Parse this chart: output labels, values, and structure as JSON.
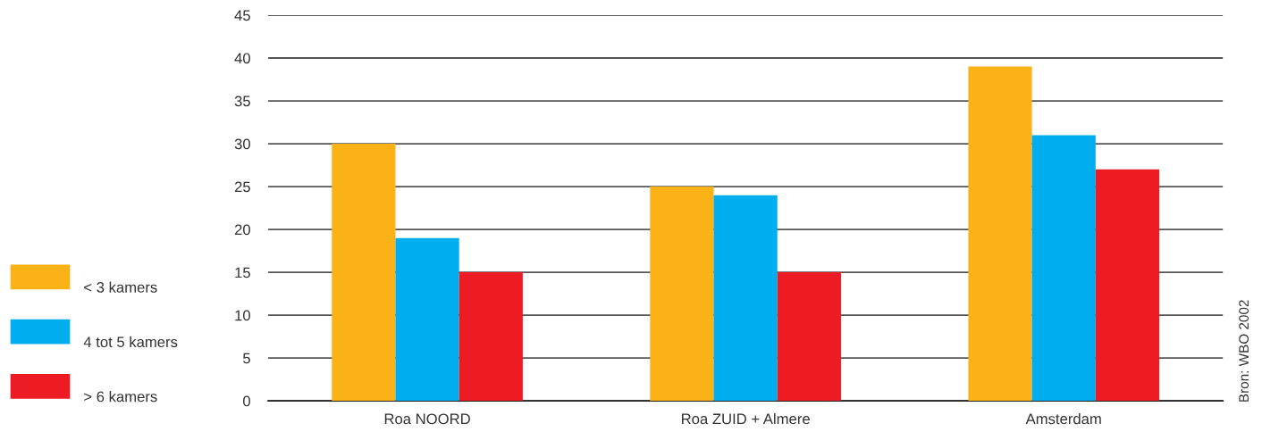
{
  "chart_data": {
    "type": "bar",
    "categories": [
      "Roa NOORD",
      "Roa ZUID + Almere",
      "Amsterdam"
    ],
    "series": [
      {
        "name": "< 3 kamers",
        "color": "#fbb217",
        "values": [
          30,
          25,
          39
        ]
      },
      {
        "name": "4 tot 5 kamers",
        "color": "#00aeef",
        "values": [
          19,
          24,
          31
        ]
      },
      {
        "name": "> 6 kamers",
        "color": "#ed1c24",
        "values": [
          15,
          15,
          27
        ]
      }
    ],
    "ylim": [
      0,
      45
    ],
    "yticks": [
      0,
      5,
      10,
      15,
      20,
      25,
      30,
      35,
      40,
      45
    ],
    "grid": "y",
    "legend": "left",
    "annotations": [
      "Bron: WBO 2002"
    ]
  }
}
